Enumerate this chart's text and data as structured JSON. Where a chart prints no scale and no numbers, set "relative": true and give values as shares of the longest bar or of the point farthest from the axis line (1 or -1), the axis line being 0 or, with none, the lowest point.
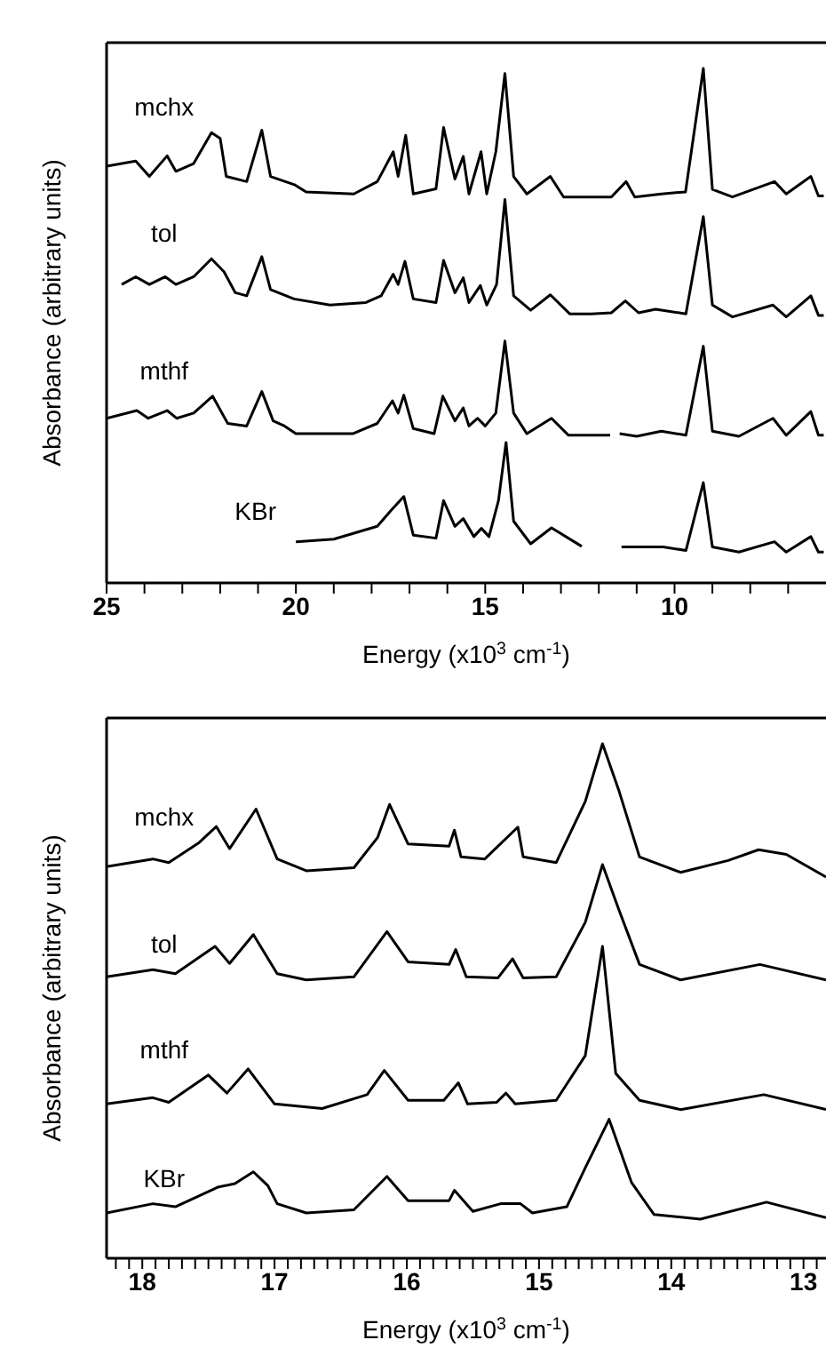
{
  "chart_data": [
    {
      "type": "line",
      "relative": true,
      "xlabel": "Energy (x10$^{3}$ cm$^{-1}$)",
      "ylabel": "Absorbance (arbitrary units)",
      "xlim": [
        25,
        6
      ],
      "xticks": [
        25,
        {
          "value": 24,
          "label": null
        },
        {
          "value": 23,
          "label": null
        },
        {
          "value": 22,
          "label": null
        },
        {
          "value": 21,
          "label": null
        },
        20,
        {
          "value": 19,
          "label": null
        },
        {
          "value": 18,
          "label": null
        },
        {
          "value": 17,
          "label": null
        },
        {
          "value": 16,
          "label": null
        },
        15,
        {
          "value": 14,
          "label": null
        },
        {
          "value": 13,
          "label": null
        },
        {
          "value": 12,
          "label": null
        },
        {
          "value": 11,
          "label": null
        },
        10,
        {
          "value": 9,
          "label": null
        },
        {
          "value": 8,
          "label": null
        },
        {
          "value": 7,
          "label": null
        }
      ],
      "series": [
        {
          "name": "mchx",
          "color": "#000000",
          "x": [
            25,
            24.23,
            23.87,
            23.4,
            23.17,
            22.7,
            22.23,
            22.0,
            21.84,
            21.3,
            20.9,
            20.67,
            20.04,
            19.73,
            18.47,
            17.85,
            17.43,
            17.3,
            17.1,
            16.9,
            16.3,
            16.1,
            15.8,
            15.58,
            15.43,
            15.11,
            14.96,
            14.72,
            14.48,
            14.25,
            13.9,
            13.28,
            12.93,
            12.3,
            11.67,
            11.28,
            11.05,
            10.34,
            9.71,
            9.24,
            9.0,
            8.47,
            7.36,
            7.05,
            6.4,
            6.2,
            6.06
          ],
          "values": [
            0.81,
            0.82,
            0.79,
            0.83,
            0.8,
            0.815,
            0.875,
            0.864,
            0.79,
            0.78,
            0.88,
            0.79,
            0.774,
            0.76,
            0.756,
            0.78,
            0.838,
            0.79,
            0.87,
            0.756,
            0.766,
            0.885,
            0.785,
            0.829,
            0.756,
            0.838,
            0.756,
            0.838,
            0.99,
            0.79,
            0.756,
            0.79,
            0.75,
            0.75,
            0.75,
            0.78,
            0.75,
            0.756,
            0.76,
            1.0,
            0.765,
            0.75,
            0.78,
            0.756,
            0.79,
            0.752,
            0.752
          ]
        },
        {
          "name": "tol",
          "color": "#000000",
          "x": [
            24.6,
            24.23,
            23.87,
            23.45,
            23.17,
            22.7,
            22.23,
            21.9,
            21.6,
            21.3,
            20.9,
            20.67,
            20.05,
            19.1,
            18.15,
            17.75,
            17.43,
            17.3,
            17.12,
            16.9,
            16.3,
            16.1,
            15.8,
            15.58,
            15.43,
            15.13,
            14.96,
            14.7,
            14.48,
            14.25,
            13.8,
            13.28,
            12.77,
            12.2,
            11.67,
            11.3,
            10.95,
            10.5,
            9.7,
            9.24,
            9.0,
            8.47,
            7.4,
            7.05,
            6.4,
            6.2,
            6.06
          ],
          "values": [
            0.58,
            0.595,
            0.58,
            0.595,
            0.58,
            0.595,
            0.63,
            0.605,
            0.564,
            0.558,
            0.634,
            0.57,
            0.552,
            0.54,
            0.545,
            0.558,
            0.6,
            0.58,
            0.625,
            0.552,
            0.545,
            0.627,
            0.564,
            0.593,
            0.545,
            0.578,
            0.54,
            0.58,
            0.745,
            0.558,
            0.53,
            0.56,
            0.523,
            0.523,
            0.525,
            0.548,
            0.525,
            0.532,
            0.523,
            0.712,
            0.54,
            0.517,
            0.54,
            0.517,
            0.558,
            0.52,
            0.52
          ]
        },
        {
          "name": "mthf",
          "color": "#000000",
          "x": [
            25,
            24.2,
            23.9,
            23.4,
            23.15,
            22.7,
            22.2,
            21.8,
            21.3,
            20.9,
            20.6,
            20.3,
            20.0,
            18.5,
            17.85,
            17.45,
            17.3,
            17.15,
            16.9,
            16.35,
            16.12,
            15.8,
            15.58,
            15.43,
            15.2,
            15.0,
            14.72,
            14.48,
            14.25,
            13.9,
            13.25,
            12.8,
            11.7,
            11.6,
            11.45,
            11.0,
            10.35,
            9.7,
            9.24,
            9.0,
            8.3,
            7.4,
            7.05,
            6.4,
            6.2,
            6.06
          ],
          "values": [
            0.32,
            0.335,
            0.32,
            0.335,
            0.32,
            0.33,
            0.363,
            0.31,
            0.305,
            0.372,
            0.315,
            0.305,
            0.29,
            0.29,
            0.31,
            0.354,
            0.33,
            0.365,
            0.3,
            0.29,
            0.363,
            0.315,
            0.34,
            0.305,
            0.32,
            0.305,
            0.33,
            0.47,
            0.33,
            0.29,
            0.32,
            0.287,
            0.287,
            null,
            0.29,
            0.285,
            0.295,
            0.287,
            0.46,
            0.295,
            0.285,
            0.32,
            0.287,
            0.333,
            0.287,
            0.287
          ]
        },
        {
          "name": "KBr",
          "color": "#000000",
          "x": [
            20,
            19.0,
            17.85,
            17.5,
            17.15,
            16.9,
            16.3,
            16.1,
            15.8,
            15.58,
            15.3,
            15.1,
            14.9,
            14.65,
            14.45,
            14.25,
            13.8,
            13.25,
            12.45,
            12.0,
            11.4,
            10.3,
            9.7,
            9.24,
            9.0,
            8.3,
            7.36,
            7.05,
            6.4,
            6.2,
            6.06
          ],
          "values": [
            0.08,
            0.085,
            0.11,
            0.14,
            0.168,
            0.093,
            0.087,
            0.16,
            0.11,
            0.125,
            0.09,
            0.106,
            0.09,
            0.16,
            0.273,
            0.12,
            0.076,
            0.107,
            0.071,
            null,
            0.07,
            0.07,
            0.063,
            0.195,
            0.07,
            0.06,
            0.08,
            0.06,
            0.09,
            0.06,
            0.06
          ]
        }
      ]
    },
    {
      "type": "line",
      "relative": true,
      "xlabel": "Energy (x10$^{3}$ cm$^{-1}$)",
      "ylabel": "Absorbance (arbitrary units)",
      "xlim": [
        18.27,
        12.83
      ],
      "xticks": [
        {
          "value": 18.2,
          "label": null
        },
        {
          "value": 18.1,
          "label": null
        },
        18,
        {
          "value": 17.9,
          "label": null
        },
        {
          "value": 17.8,
          "label": null
        },
        {
          "value": 17.7,
          "label": null
        },
        {
          "value": 17.6,
          "label": null
        },
        {
          "value": 17.5,
          "label": null
        },
        {
          "value": 17.4,
          "label": null
        },
        {
          "value": 17.3,
          "label": null
        },
        {
          "value": 17.2,
          "label": null
        },
        {
          "value": 17.1,
          "label": null
        },
        17,
        {
          "value": 16.9,
          "label": null
        },
        {
          "value": 16.8,
          "label": null
        },
        {
          "value": 16.7,
          "label": null
        },
        {
          "value": 16.6,
          "label": null
        },
        {
          "value": 16.5,
          "label": null
        },
        {
          "value": 16.4,
          "label": null
        },
        {
          "value": 16.3,
          "label": null
        },
        {
          "value": 16.2,
          "label": null
        },
        {
          "value": 16.1,
          "label": null
        },
        16,
        {
          "value": 15.9,
          "label": null
        },
        {
          "value": 15.8,
          "label": null
        },
        {
          "value": 15.7,
          "label": null
        },
        {
          "value": 15.6,
          "label": null
        },
        {
          "value": 15.5,
          "label": null
        },
        {
          "value": 15.4,
          "label": null
        },
        {
          "value": 15.3,
          "label": null
        },
        {
          "value": 15.2,
          "label": null
        },
        {
          "value": 15.1,
          "label": null
        },
        15,
        {
          "value": 14.9,
          "label": null
        },
        {
          "value": 14.8,
          "label": null
        },
        {
          "value": 14.7,
          "label": null
        },
        {
          "value": 14.6,
          "label": null
        },
        {
          "value": 14.5,
          "label": null
        },
        {
          "value": 14.4,
          "label": null
        },
        {
          "value": 14.3,
          "label": null
        },
        {
          "value": 14.2,
          "label": null
        },
        {
          "value": 14.1,
          "label": null
        },
        14,
        {
          "value": 13.9,
          "label": null
        },
        {
          "value": 13.8,
          "label": null
        },
        {
          "value": 13.7,
          "label": null
        },
        {
          "value": 13.6,
          "label": null
        },
        {
          "value": 13.5,
          "label": null
        },
        {
          "value": 13.4,
          "label": null
        },
        {
          "value": 13.3,
          "label": null
        },
        {
          "value": 13.2,
          "label": null
        },
        {
          "value": 13.1,
          "label": null
        },
        13,
        {
          "value": 12.9,
          "label": null
        }
      ],
      "series": [
        {
          "name": "mchx",
          "color": "#000000",
          "x": [
            18.27,
            17.92,
            17.8,
            17.57,
            17.44,
            17.34,
            17.14,
            16.98,
            16.76,
            16.4,
            16.22,
            16.13,
            15.99,
            15.68,
            15.64,
            15.59,
            15.41,
            15.16,
            15.12,
            14.87,
            14.65,
            14.52,
            14.4,
            14.24,
            13.93,
            13.57,
            13.34,
            13.13,
            12.83
          ],
          "values": [
            0.761,
            0.776,
            0.769,
            0.808,
            0.839,
            0.796,
            0.873,
            0.776,
            0.753,
            0.759,
            0.818,
            0.882,
            0.805,
            0.801,
            0.832,
            0.78,
            0.776,
            0.838,
            0.78,
            0.769,
            0.888,
            1.0,
            0.912,
            0.78,
            0.75,
            0.773,
            0.794,
            0.785,
            0.741
          ]
        },
        {
          "name": "tol",
          "color": "#000000",
          "x": [
            18.27,
            17.92,
            17.75,
            17.45,
            17.34,
            17.16,
            16.98,
            16.76,
            16.4,
            16.15,
            15.99,
            15.68,
            15.63,
            15.55,
            15.31,
            15.2,
            15.12,
            14.87,
            14.65,
            14.52,
            14.4,
            14.24,
            13.93,
            13.33,
            12.83
          ],
          "values": [
            0.547,
            0.561,
            0.553,
            0.606,
            0.573,
            0.629,
            0.553,
            0.541,
            0.547,
            0.635,
            0.576,
            0.571,
            0.6,
            0.547,
            0.545,
            0.582,
            0.545,
            0.547,
            0.653,
            0.765,
            0.68,
            0.571,
            0.541,
            0.571,
            0.541
          ]
        },
        {
          "name": "mthf",
          "color": "#000000",
          "x": [
            18.27,
            17.92,
            17.8,
            17.5,
            17.36,
            17.2,
            17.0,
            16.64,
            16.3,
            16.17,
            15.99,
            15.72,
            15.61,
            15.54,
            15.32,
            15.25,
            15.18,
            14.87,
            14.65,
            14.52,
            14.42,
            14.24,
            13.93,
            13.3,
            12.83
          ],
          "values": [
            0.3,
            0.312,
            0.303,
            0.356,
            0.321,
            0.368,
            0.3,
            0.291,
            0.318,
            0.365,
            0.307,
            0.307,
            0.341,
            0.3,
            0.303,
            0.321,
            0.3,
            0.307,
            0.394,
            0.606,
            0.359,
            0.307,
            0.289,
            0.318,
            0.289
          ]
        },
        {
          "name": "KBr",
          "color": "#000000",
          "x": [
            18.27,
            17.92,
            17.75,
            17.43,
            17.3,
            17.16,
            17.05,
            16.98,
            16.76,
            16.4,
            16.15,
            15.99,
            15.68,
            15.64,
            15.5,
            15.29,
            15.14,
            15.05,
            14.79,
            14.65,
            14.47,
            14.3,
            14.13,
            13.78,
            13.28,
            12.83
          ],
          "values": [
            0.088,
            0.106,
            0.1,
            0.138,
            0.145,
            0.168,
            0.141,
            0.106,
            0.088,
            0.094,
            0.159,
            0.112,
            0.112,
            0.132,
            0.091,
            0.106,
            0.106,
            0.088,
            0.1,
            0.176,
            0.27,
            0.147,
            0.085,
            0.076,
            0.109,
            0.079
          ]
        }
      ]
    }
  ]
}
